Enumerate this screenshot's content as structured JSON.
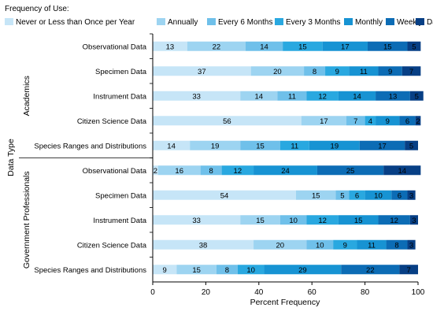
{
  "chart_data": {
    "type": "bar",
    "orientation": "horizontal",
    "stacked": true,
    "legend_title": "Frequency of Use:",
    "legend_position": "top",
    "xlabel": "Percent Frequency",
    "ylabel": "Data Type",
    "xlim": [
      0,
      100
    ],
    "xticks": [
      "0",
      "20",
      "40",
      "60",
      "80",
      "100"
    ],
    "groups": [
      {
        "name": "Academics",
        "categories": [
          "Observational Data",
          "Specimen Data",
          "Instrument Data",
          "Citizen Science Data",
          "Species Ranges and Distributions"
        ]
      },
      {
        "name": "Government Professionals",
        "categories": [
          "Observational Data",
          "Specimen Data",
          "Instrument Data",
          "Citizen Science Data",
          "Species Ranges and Distributions"
        ]
      }
    ],
    "series": [
      {
        "name": "Never or Less than Once per Year",
        "color": "#c6e5f7",
        "values": [
          13,
          37,
          33,
          56,
          14,
          2,
          54,
          33,
          38,
          9
        ]
      },
      {
        "name": "Annually",
        "color": "#9dd4f1",
        "values": [
          22,
          20,
          14,
          17,
          19,
          16,
          15,
          15,
          20,
          15
        ]
      },
      {
        "name": "Every 6 Months",
        "color": "#6fc0ea",
        "values": [
          14,
          8,
          11,
          7,
          15,
          8,
          5,
          10,
          10,
          8
        ]
      },
      {
        "name": "Every 3 Months",
        "color": "#29a8e0",
        "values": [
          15,
          9,
          12,
          4,
          11,
          12,
          6,
          12,
          9,
          10
        ]
      },
      {
        "name": "Monthly",
        "color": "#1793d3",
        "values": [
          17,
          11,
          14,
          9,
          19,
          24,
          10,
          15,
          11,
          29
        ]
      },
      {
        "name": "Weekly",
        "color": "#0c6cb5",
        "values": [
          15,
          9,
          13,
          6,
          17,
          25,
          6,
          12,
          8,
          22
        ]
      },
      {
        "name": "Daily",
        "color": "#073f85",
        "values": [
          5,
          7,
          5,
          2,
          5,
          14,
          3,
          3,
          3,
          7
        ]
      }
    ],
    "grid": false
  }
}
